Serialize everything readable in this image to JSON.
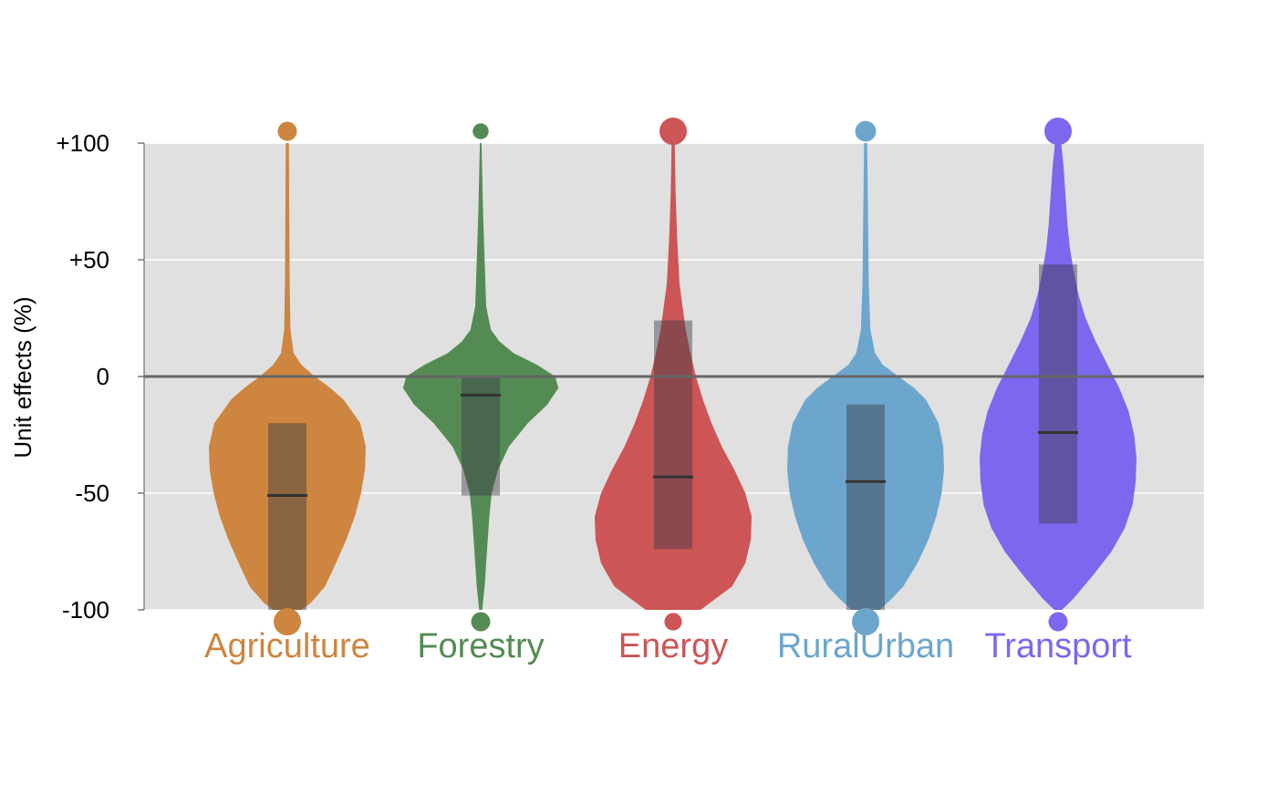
{
  "chart_data": {
    "type": "violin",
    "ylabel": "Unit effects (%)",
    "ylim": [
      -100,
      100
    ],
    "yticks": [
      {
        "value": 100,
        "label": "+100"
      },
      {
        "value": 50,
        "label": "+50"
      },
      {
        "value": 0,
        "label": "0"
      },
      {
        "value": -50,
        "label": "-50"
      },
      {
        "value": -100,
        "label": "-100"
      }
    ],
    "grid": true,
    "zero_line": true,
    "background": "#e0e0e0",
    "categories": [
      {
        "name": "Agriculture",
        "color": "#cd853f",
        "median": -51,
        "q1": -100,
        "q3": -20,
        "outlier_top_size": 0.5,
        "outlier_bottom_size": 1.0,
        "density": [
          [
            -100,
            0.18
          ],
          [
            -97,
            0.3
          ],
          [
            -90,
            0.48
          ],
          [
            -80,
            0.62
          ],
          [
            -70,
            0.75
          ],
          [
            -60,
            0.86
          ],
          [
            -50,
            0.94
          ],
          [
            -40,
            0.99
          ],
          [
            -30,
            1.0
          ],
          [
            -20,
            0.93
          ],
          [
            -10,
            0.72
          ],
          [
            -5,
            0.55
          ],
          [
            0,
            0.35
          ],
          [
            5,
            0.18
          ],
          [
            10,
            0.08
          ],
          [
            20,
            0.04
          ],
          [
            40,
            0.03
          ],
          [
            70,
            0.025
          ],
          [
            100,
            0.02
          ]
        ]
      },
      {
        "name": "Forestry",
        "color": "#548b54",
        "median": -8,
        "q1": -51,
        "q3": 0,
        "outlier_top_size": 0.3,
        "outlier_bottom_size": 0.5,
        "density": [
          [
            -100,
            0.02
          ],
          [
            -90,
            0.05
          ],
          [
            -80,
            0.07
          ],
          [
            -70,
            0.09
          ],
          [
            -60,
            0.11
          ],
          [
            -50,
            0.14
          ],
          [
            -40,
            0.22
          ],
          [
            -30,
            0.36
          ],
          [
            -20,
            0.6
          ],
          [
            -12,
            0.85
          ],
          [
            -5,
            0.99
          ],
          [
            0,
            0.95
          ],
          [
            5,
            0.72
          ],
          [
            10,
            0.42
          ],
          [
            15,
            0.24
          ],
          [
            20,
            0.13
          ],
          [
            30,
            0.07
          ],
          [
            50,
            0.05
          ],
          [
            70,
            0.03
          ],
          [
            100,
            0.01
          ]
        ]
      },
      {
        "name": "Energy",
        "color": "#cd5555",
        "median": -43,
        "q1": -74,
        "q3": 24,
        "outlier_top_size": 1.0,
        "outlier_bottom_size": 0.4,
        "density": [
          [
            -100,
            0.35
          ],
          [
            -90,
            0.75
          ],
          [
            -80,
            0.92
          ],
          [
            -70,
            0.99
          ],
          [
            -60,
            1.0
          ],
          [
            -50,
            0.92
          ],
          [
            -40,
            0.78
          ],
          [
            -30,
            0.62
          ],
          [
            -20,
            0.49
          ],
          [
            -10,
            0.38
          ],
          [
            0,
            0.29
          ],
          [
            10,
            0.22
          ],
          [
            20,
            0.16
          ],
          [
            30,
            0.12
          ],
          [
            40,
            0.08
          ],
          [
            60,
            0.05
          ],
          [
            80,
            0.03
          ],
          [
            100,
            0.02
          ]
        ]
      },
      {
        "name": "RuralUrban",
        "color": "#6ca6cd",
        "median": -45,
        "q1": -100,
        "q3": -12,
        "outlier_top_size": 0.6,
        "outlier_bottom_size": 1.0,
        "density": [
          [
            -100,
            0.18
          ],
          [
            -95,
            0.34
          ],
          [
            -90,
            0.48
          ],
          [
            -80,
            0.66
          ],
          [
            -70,
            0.8
          ],
          [
            -60,
            0.9
          ],
          [
            -50,
            0.97
          ],
          [
            -40,
            1.0
          ],
          [
            -30,
            0.99
          ],
          [
            -20,
            0.93
          ],
          [
            -10,
            0.77
          ],
          [
            -5,
            0.62
          ],
          [
            0,
            0.42
          ],
          [
            5,
            0.22
          ],
          [
            10,
            0.12
          ],
          [
            20,
            0.06
          ],
          [
            40,
            0.04
          ],
          [
            70,
            0.03
          ],
          [
            100,
            0.02
          ]
        ]
      },
      {
        "name": "Transport",
        "color": "#7b68ee",
        "median": -24,
        "q1": -63,
        "q3": 48,
        "outlier_top_size": 1.0,
        "outlier_bottom_size": 0.5,
        "density": [
          [
            -100,
            0.05
          ],
          [
            -95,
            0.2
          ],
          [
            -85,
            0.45
          ],
          [
            -75,
            0.68
          ],
          [
            -65,
            0.85
          ],
          [
            -55,
            0.95
          ],
          [
            -45,
            0.99
          ],
          [
            -35,
            1.0
          ],
          [
            -25,
            0.97
          ],
          [
            -15,
            0.9
          ],
          [
            -5,
            0.78
          ],
          [
            5,
            0.63
          ],
          [
            15,
            0.48
          ],
          [
            25,
            0.35
          ],
          [
            35,
            0.26
          ],
          [
            45,
            0.2
          ],
          [
            55,
            0.15
          ],
          [
            65,
            0.12
          ],
          [
            75,
            0.1
          ],
          [
            90,
            0.07
          ],
          [
            100,
            0.04
          ]
        ]
      }
    ]
  }
}
